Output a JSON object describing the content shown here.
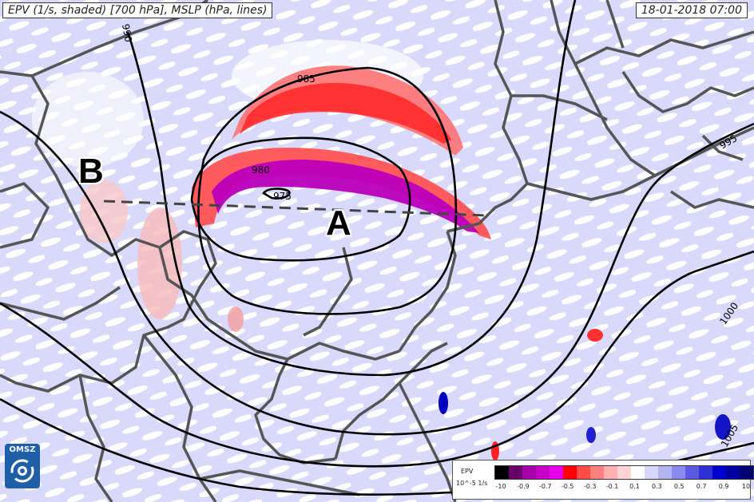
{
  "header": {
    "title": "EPV (1/s, shaded) [700 hPa], MSLP (hPa, lines)",
    "datetime": "18-01-2018 07:00"
  },
  "points": {
    "a": "A",
    "b": "B"
  },
  "isobar_labels": [
    "990",
    "985",
    "980",
    "975",
    "995",
    "1000",
    "1005"
  ],
  "logo": {
    "text": "OMSZ"
  },
  "legend": {
    "title": "EPV",
    "unit": "10^-5 1/s",
    "colors": [
      "#000000",
      "#6a006a",
      "#a800a8",
      "#c800c8",
      "#e800e8",
      "#ff0000",
      "#ff4a4a",
      "#ff8080",
      "#ffb0b0",
      "#ffd4d4",
      "#ffffff",
      "#d6d6ff",
      "#b4b4f4",
      "#8a8aee",
      "#5a5ae0",
      "#3030d8",
      "#0000d0",
      "#0000a0",
      "#000070"
    ],
    "tick_labels": [
      "-10",
      "-0.9",
      "-0.7",
      "-0.5",
      "-0.3",
      "-0.1",
      "0.1",
      "0.3",
      "0.5",
      "0.7",
      "0.9",
      "10"
    ]
  }
}
